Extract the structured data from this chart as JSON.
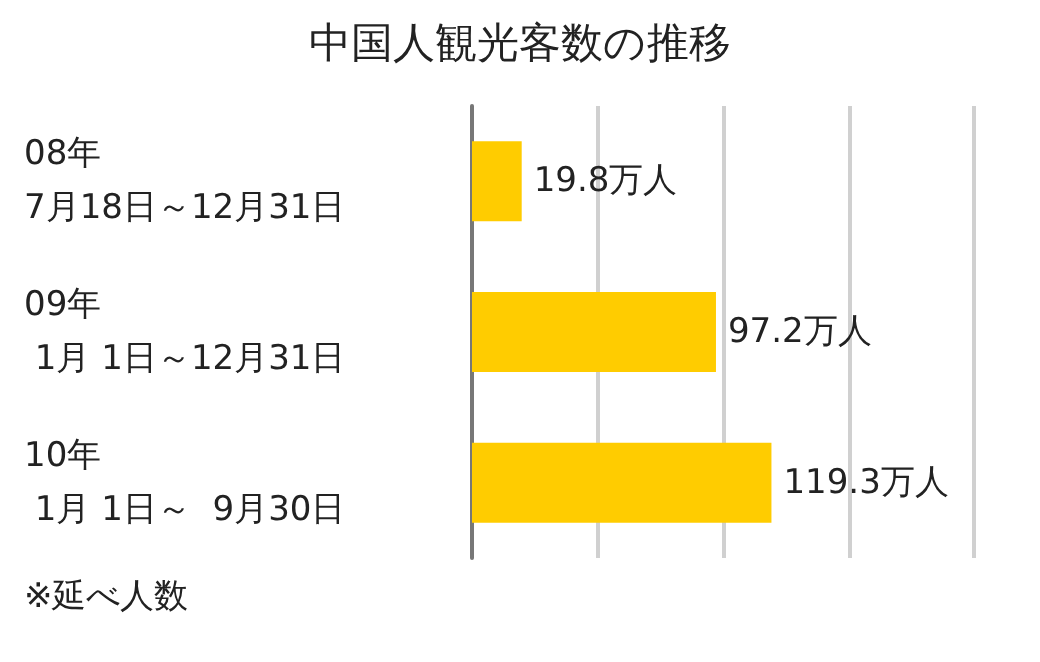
{
  "chart_data": {
    "type": "bar",
    "orientation": "horizontal",
    "title": "中国人観光客数の推移",
    "categories": [
      "08年\n7月18日～12月31日",
      "09年\n 1月 1日～12月31日",
      "10年\n 1月 1日～  9月30日"
    ],
    "values": [
      19.8,
      97.2,
      119.3
    ],
    "color": "#ffcc00",
    "value_labels": [
      "19.8万人",
      "97.2万人",
      "119.3万人"
    ],
    "xlim": [
      0,
      200
    ],
    "xticks": [
      {
        "value": 0,
        "label": null
      },
      {
        "value": 50,
        "label": null
      },
      {
        "value": 100,
        "label": null
      },
      {
        "value": 150,
        "label": null
      },
      {
        "value": 200,
        "label": null
      }
    ],
    "grid": "x",
    "tick_labels": "y",
    "annotations": [
      "※延べ人数"
    ]
  }
}
